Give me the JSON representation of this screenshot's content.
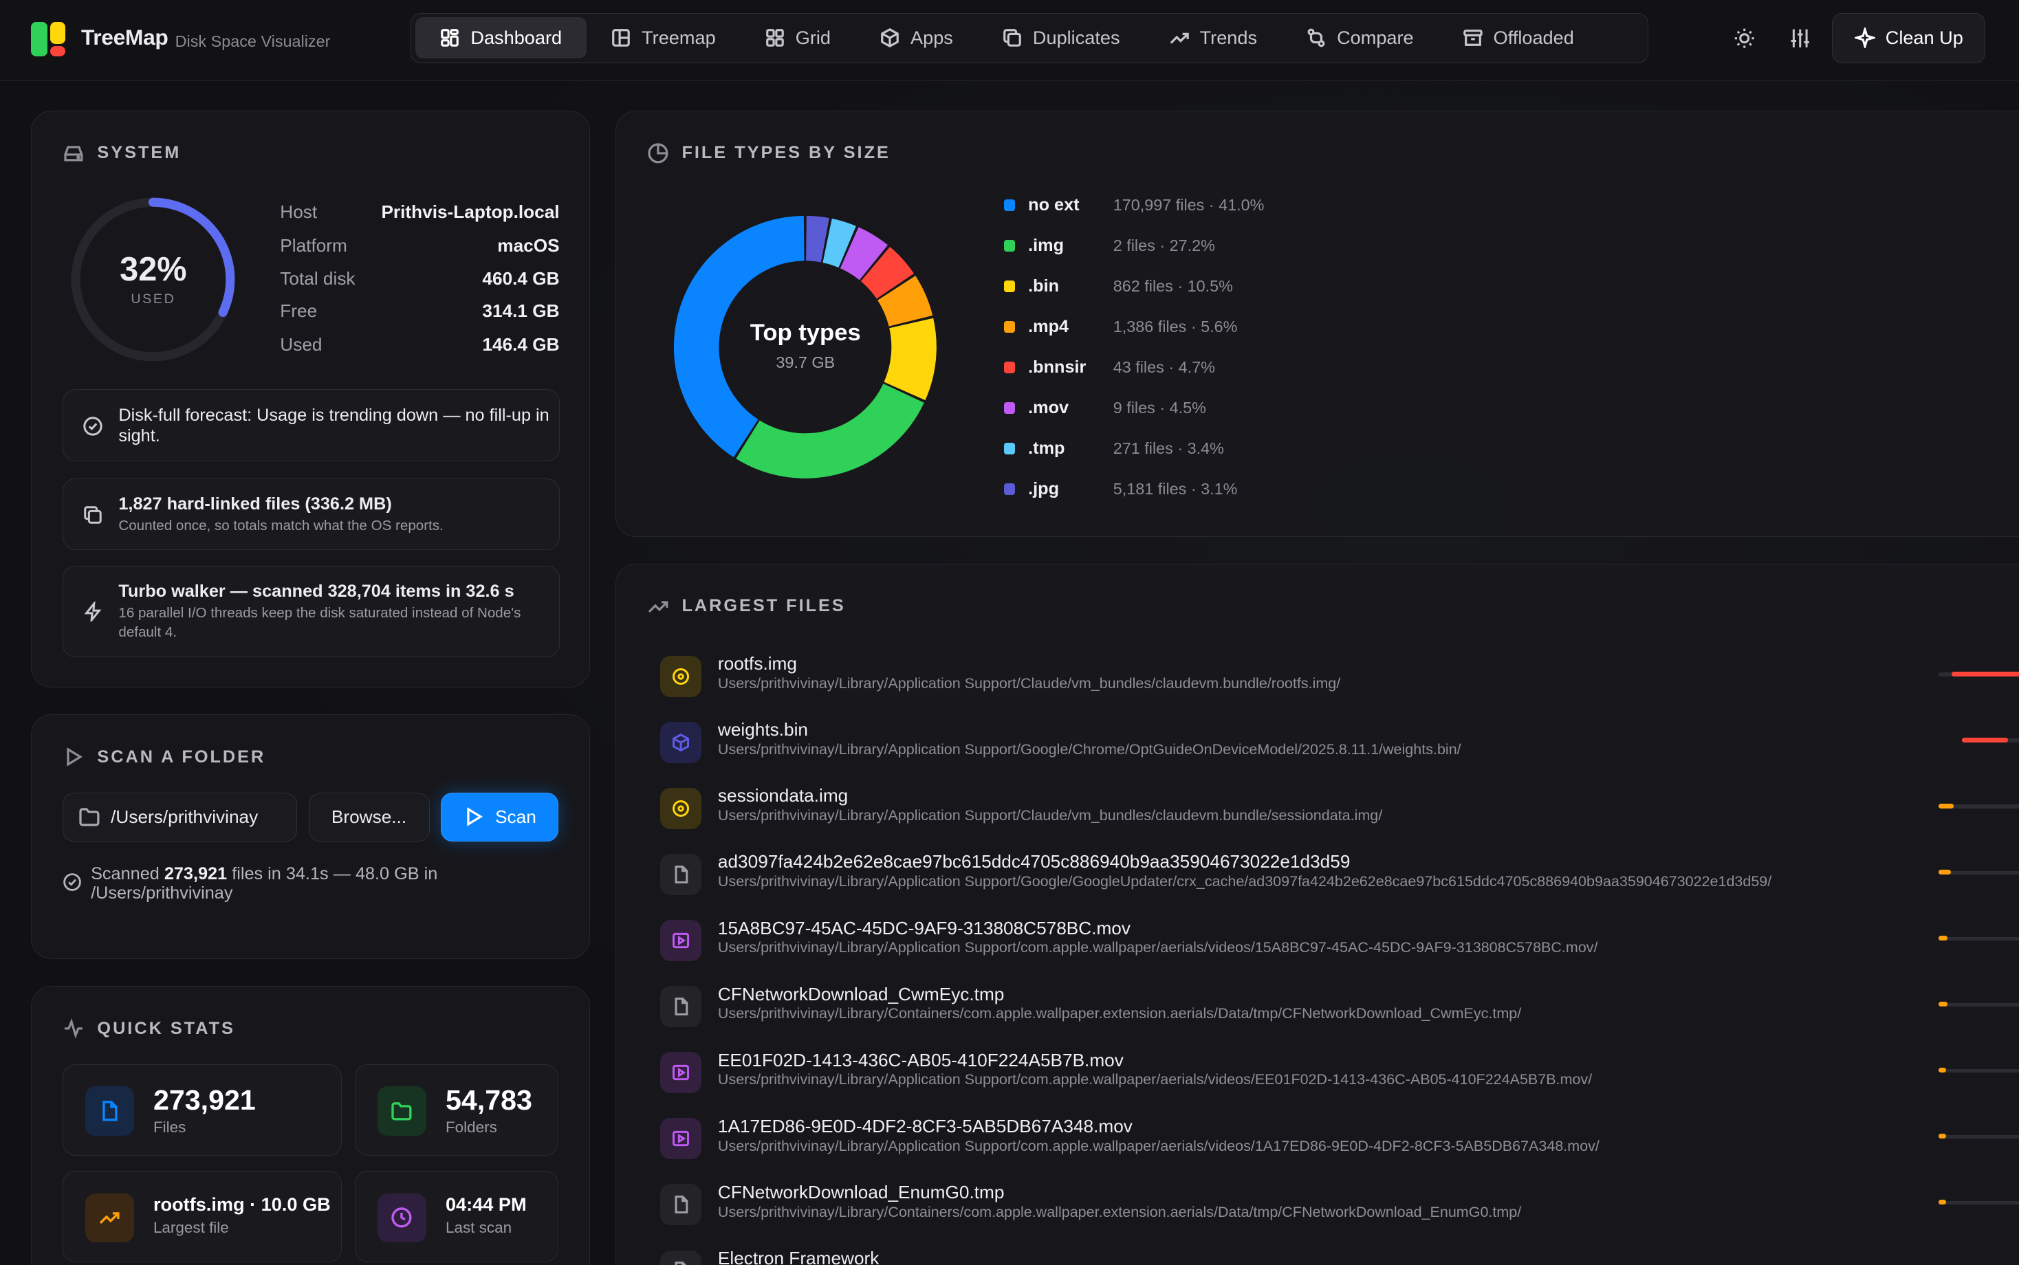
{
  "app": {
    "name": "TreeMap",
    "subtitle": "Disk Space Visualizer"
  },
  "nav": [
    {
      "label": "Dashboard",
      "icon": "dashboard-icon",
      "active": true
    },
    {
      "label": "Treemap",
      "icon": "treemap-icon"
    },
    {
      "label": "Grid",
      "icon": "grid-icon"
    },
    {
      "label": "Apps",
      "icon": "package-icon"
    },
    {
      "label": "Duplicates",
      "icon": "copy-icon"
    },
    {
      "label": "Trends",
      "icon": "trending-up-icon"
    },
    {
      "label": "Compare",
      "icon": "compare-icon"
    },
    {
      "label": "Offloaded",
      "icon": "archive-icon"
    }
  ],
  "actions": {
    "theme_icon": "sun-icon",
    "settings_icon": "sliders-icon",
    "cleanup_label": "Clean Up",
    "cleanup_icon": "sparkle-icon"
  },
  "system": {
    "title": "SYSTEM",
    "used_percent": "32%",
    "used_label": "USED",
    "used_fraction": 0.32,
    "info": [
      {
        "k": "Host",
        "v": "Prithvis-Laptop.local"
      },
      {
        "k": "Platform",
        "v": "macOS"
      },
      {
        "k": "Total disk",
        "v": "460.4 GB"
      },
      {
        "k": "Free",
        "v": "314.1 GB"
      },
      {
        "k": "Used",
        "v": "146.4 GB"
      }
    ],
    "forecast": "Disk-full forecast: Usage is trending down — no fill-up in sight.",
    "hardlinks_title": "1,827 hard-linked files (336.2 MB)",
    "hardlinks_sub": "Counted once, so totals match what the OS reports.",
    "turbo_title": "Turbo walker — scanned 328,704 items in 32.6 s",
    "turbo_sub": "16 parallel I/O threads keep the disk saturated instead of Node's default 4."
  },
  "scan": {
    "title": "SCAN A FOLDER",
    "path": "/Users/prithvivinay",
    "browse_label": "Browse...",
    "scan_label": "Scan",
    "status_prefix": "Scanned ",
    "status_count": "273,921",
    "status_suffix": " files in 34.1s — 48.0 GB in /Users/prithvivinay"
  },
  "quick_stats": {
    "title": "QUICK STATS",
    "files_value": "273,921",
    "files_label": "Files",
    "folders_value": "54,783",
    "folders_label": "Folders",
    "largest_value": "rootfs.img · 10.0 GB",
    "largest_label": "Largest file",
    "last_scan_value": "04:44 PM",
    "last_scan_label": "Last scan"
  },
  "file_types": {
    "title": "FILE TYPES BY SIZE",
    "center_title": "Top types",
    "center_value": "39.7 GB"
  },
  "chart_data": {
    "type": "pie",
    "title": "FILE TYPES BY SIZE",
    "categories": [
      ".jpg",
      ".tmp",
      ".mov",
      ".bnnsir",
      ".mp4",
      ".bin",
      ".img",
      "no ext"
    ],
    "values": [
      3.1,
      3.4,
      4.5,
      4.7,
      5.6,
      10.5,
      27.2,
      41.0
    ],
    "files": [
      "5,181 files",
      "271 files",
      "9 files",
      "43 files",
      "1,386 files",
      "862 files",
      "2 files",
      "170,997 files"
    ],
    "percent_labels": [
      "3.1%",
      "3.4%",
      "4.5%",
      "4.7%",
      "5.6%",
      "10.5%",
      "27.2%",
      "41.0%"
    ],
    "colors": [
      "#5b5bd6",
      "#5ac8fa",
      "#bf5af2",
      "#ff453a",
      "#ff9f0a",
      "#ffd60a",
      "#30d158",
      "#0a84ff"
    ],
    "center_label": "Top types",
    "total": "39.7 GB"
  },
  "largest_files": {
    "title": "LARGEST FILES",
    "items": [
      {
        "name": "rootfs.img",
        "path": "Users/prithvivinay/Library/Application Support/Claude/vm_bundles/claudevm.bundle/rootfs.img/",
        "icon": "disc-icon",
        "tint": "#ffd60a",
        "bg": "#3a3212",
        "bar": 1.0,
        "bar_color": "#ff453a"
      },
      {
        "name": "weights.bin",
        "path": "Users/prithvivinay/Library/Application Support/Google/Chrome/OptGuideOnDeviceModel/2025.8.11.1/weights.bin/",
        "icon": "cube-icon",
        "tint": "#5e5ce6",
        "bg": "#23234a",
        "bar": 0.52,
        "bar_color": "#ff453a"
      },
      {
        "name": "sessiondata.img",
        "path": "Users/prithvivinay/Library/Application Support/Claude/vm_bundles/claudevm.bundle/sessiondata.img/",
        "icon": "disc-icon",
        "tint": "#ffd60a",
        "bg": "#3a3212",
        "bar": 0.1,
        "bar_color": "#ff9f0a"
      },
      {
        "name": "ad3097fa424b2e62e8cae97bc615ddc4705c886940b9aa35904673022e1d3d59",
        "path": "Users/prithvivinay/Library/Application Support/Google/GoogleUpdater/crx_cache/ad3097fa424b2e62e8cae97bc615ddc4705c886940b9aa35904673022e1d3d59/",
        "icon": "file-icon",
        "tint": "#a0a0a8",
        "bg": "#242428",
        "bar": 0.08,
        "bar_color": "#ff9f0a"
      },
      {
        "name": "15A8BC97-45AC-45DC-9AF9-313808C578BC.mov",
        "path": "Users/prithvivinay/Library/Application Support/com.apple.wallpaper/aerials/videos/15A8BC97-45AC-45DC-9AF9-313808C578BC.mov/",
        "icon": "video-icon",
        "tint": "#bf5af2",
        "bg": "#33203f",
        "bar": 0.06,
        "bar_color": "#ff9f0a"
      },
      {
        "name": "CFNetworkDownload_CwmEyc.tmp",
        "path": "Users/prithvivinay/Library/Containers/com.apple.wallpaper.extension.aerials/Data/tmp/CFNetworkDownload_CwmEyc.tmp/",
        "icon": "file-icon",
        "tint": "#a0a0a8",
        "bg": "#242428",
        "bar": 0.06,
        "bar_color": "#ff9f0a"
      },
      {
        "name": "EE01F02D-1413-436C-AB05-410F224A5B7B.mov",
        "path": "Users/prithvivinay/Library/Application Support/com.apple.wallpaper/aerials/videos/EE01F02D-1413-436C-AB05-410F224A5B7B.mov/",
        "icon": "video-icon",
        "tint": "#bf5af2",
        "bg": "#33203f",
        "bar": 0.05,
        "bar_color": "#ff9f0a"
      },
      {
        "name": "1A17ED86-9E0D-4DF2-8CF3-5AB5DB67A348.mov",
        "path": "Users/prithvivinay/Library/Application Support/com.apple.wallpaper/aerials/videos/1A17ED86-9E0D-4DF2-8CF3-5AB5DB67A348.mov/",
        "icon": "video-icon",
        "tint": "#bf5af2",
        "bg": "#33203f",
        "bar": 0.05,
        "bar_color": "#ff9f0a"
      },
      {
        "name": "CFNetworkDownload_EnumG0.tmp",
        "path": "Users/prithvivinay/Library/Containers/com.apple.wallpaper.extension.aerials/Data/tmp/CFNetworkDownload_EnumG0.tmp/",
        "icon": "file-icon",
        "tint": "#a0a0a8",
        "bg": "#242428",
        "bar": 0.05,
        "bar_color": "#ff9f0a"
      },
      {
        "name": "Electron Framework",
        "path": "",
        "icon": "file-icon",
        "tint": "#a0a0a8",
        "bg": "#242428",
        "bar": 0.04,
        "bar_color": "#ff9f0a"
      }
    ]
  }
}
